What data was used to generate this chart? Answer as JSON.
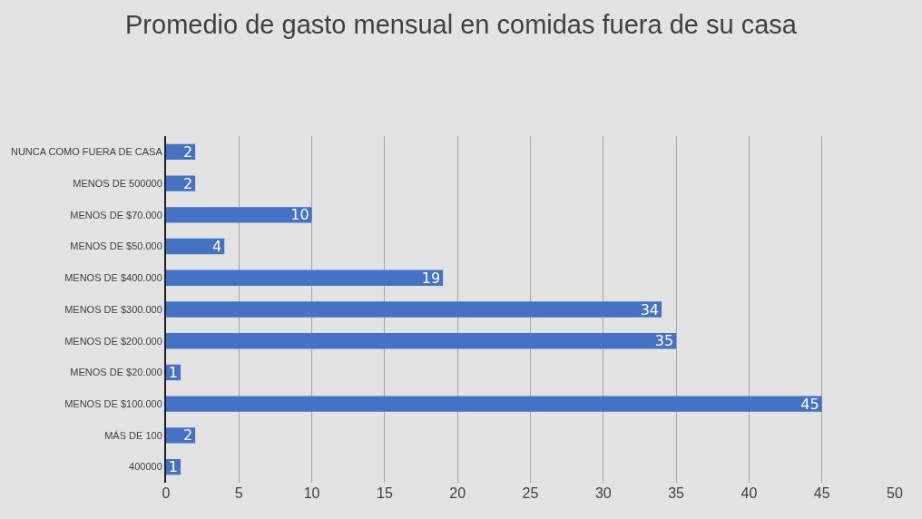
{
  "chart_data": {
    "type": "bar",
    "orientation": "horizontal",
    "title": "Promedio de gasto mensual en comidas fuera de su casa",
    "categories": [
      "NUNCA COMO FUERA DE CASA",
      "MENOS DE 500000",
      "MENOS DE $70.000",
      "MENOS DE $50.000",
      "MENOS DE $400.000",
      "MENOS DE $300.000",
      "MENOS DE $200.000",
      "MENOS DE $20.000",
      "MENOS DE $100.000",
      "MÁS DE 100",
      "400000"
    ],
    "values": [
      2,
      2,
      10,
      4,
      19,
      34,
      35,
      1,
      45,
      2,
      1
    ],
    "color": "#4472c4",
    "xlim": [
      0,
      50
    ],
    "xticks": [
      0,
      5,
      10,
      15,
      20,
      25,
      30,
      35,
      40,
      45,
      50
    ],
    "grid": "x",
    "data_labels": true
  }
}
